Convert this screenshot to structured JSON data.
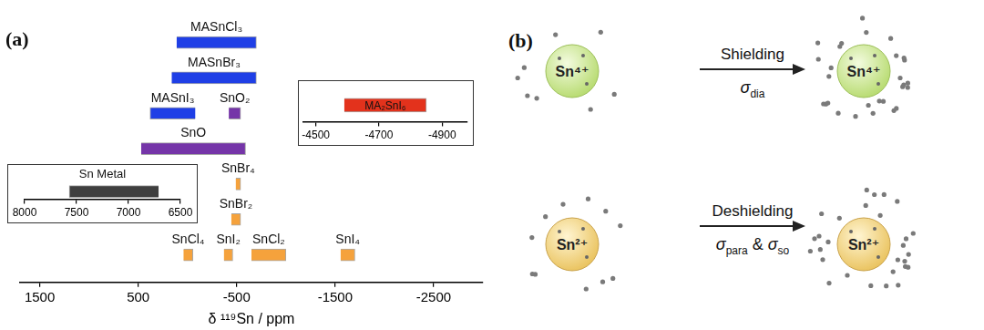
{
  "panel_labels": [
    "(a)",
    "(b)"
  ],
  "chart_data": [
    {
      "type": "bar",
      "orientation": "horizontal",
      "x_label": "δ ¹¹⁹Sn / ppm",
      "categories": [
        "MASnCl₃",
        "MASnBr₃",
        "MASnI₃",
        "SnO₂",
        "SnO",
        "SnBr₄",
        "SnBr₂",
        "SnCl₄",
        "SnI₂",
        "SnCl₂",
        "SnI₄"
      ],
      "values": [
        [
          110,
          -700
        ],
        [
          160,
          -700
        ],
        [
          380,
          -80
        ],
        [
          -420,
          -540
        ],
        [
          470,
          -590
        ],
        [
          -490,
          -540
        ],
        [
          -445,
          -540
        ],
        [
          40,
          -55
        ],
        [
          -370,
          -460
        ],
        [
          -650,
          -1000
        ],
        [
          -1555,
          -1700
        ]
      ],
      "colors": [
        "#1f3fe6",
        "#1f3fe6",
        "#1f3fe6",
        "#7535a8",
        "#7535a8",
        "#f5a23c",
        "#f5a23c",
        "#f5a23c",
        "#f5a23c",
        "#f5a23c",
        "#f5a23c"
      ],
      "xlim": [
        1700,
        -3000
      ],
      "xticks": [
        1500,
        500,
        -500,
        -1500,
        -2500
      ],
      "grid": false,
      "tick_labels": "x"
    },
    {
      "type": "bar",
      "orientation": "horizontal",
      "title": "Sn Metal",
      "categories": [
        null
      ],
      "values": [
        [
          7570,
          6710
        ]
      ],
      "colors": [
        "#3f3f3f"
      ],
      "xlim": [
        8000,
        6500
      ],
      "xticks": [
        8000,
        7500,
        7000,
        6500
      ],
      "grid": false,
      "tick_labels": "x"
    },
    {
      "type": "bar",
      "orientation": "horizontal",
      "categories": [
        "MA₂SnI₆"
      ],
      "values": [
        [
          -4590,
          -4850
        ]
      ],
      "colors": [
        "#e3321c"
      ],
      "xlim": [
        -4460,
        -4980
      ],
      "xticks": [
        -4500,
        -4700,
        -4900
      ],
      "grid": false,
      "tick_labels": "x"
    }
  ],
  "diagram": {
    "rows": [
      {
        "ion": "Sn⁴⁺",
        "process": "Shielding",
        "terms": [
          {
            "symbol": "σ",
            "sub": "dia"
          }
        ]
      },
      {
        "ion": "Sn²⁺",
        "process": "Deshielding",
        "terms": [
          {
            "symbol": "σ",
            "sub": "para"
          },
          {
            "symbol": "σ",
            "sub": "so"
          }
        ],
        "joiner": "&"
      }
    ]
  }
}
